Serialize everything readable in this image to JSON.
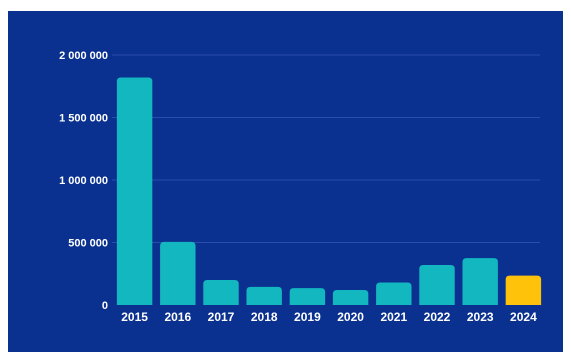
{
  "colors": {
    "background": "#0a3190",
    "bar": "#13b7c0",
    "highlight": "#ffc20a",
    "grid": "#2a4cab",
    "text": "#ffffff"
  },
  "chart_data": {
    "type": "bar",
    "title": "",
    "xlabel": "",
    "ylabel": "",
    "categories": [
      "2015",
      "2016",
      "2017",
      "2018",
      "2019",
      "2020",
      "2021",
      "2022",
      "2023",
      "2024"
    ],
    "values": [
      1820000,
      505000,
      200000,
      145000,
      135000,
      120000,
      180000,
      320000,
      375000,
      235000
    ],
    "highlight_category": "2024",
    "ylim": [
      0,
      2000000
    ],
    "yticks": [
      0,
      500000,
      1000000,
      1500000,
      2000000
    ],
    "ytick_labels": [
      "0",
      "500 000",
      "1 000 000",
      "1 500 000",
      "2 000 000"
    ],
    "grid": true,
    "legend": "none"
  }
}
